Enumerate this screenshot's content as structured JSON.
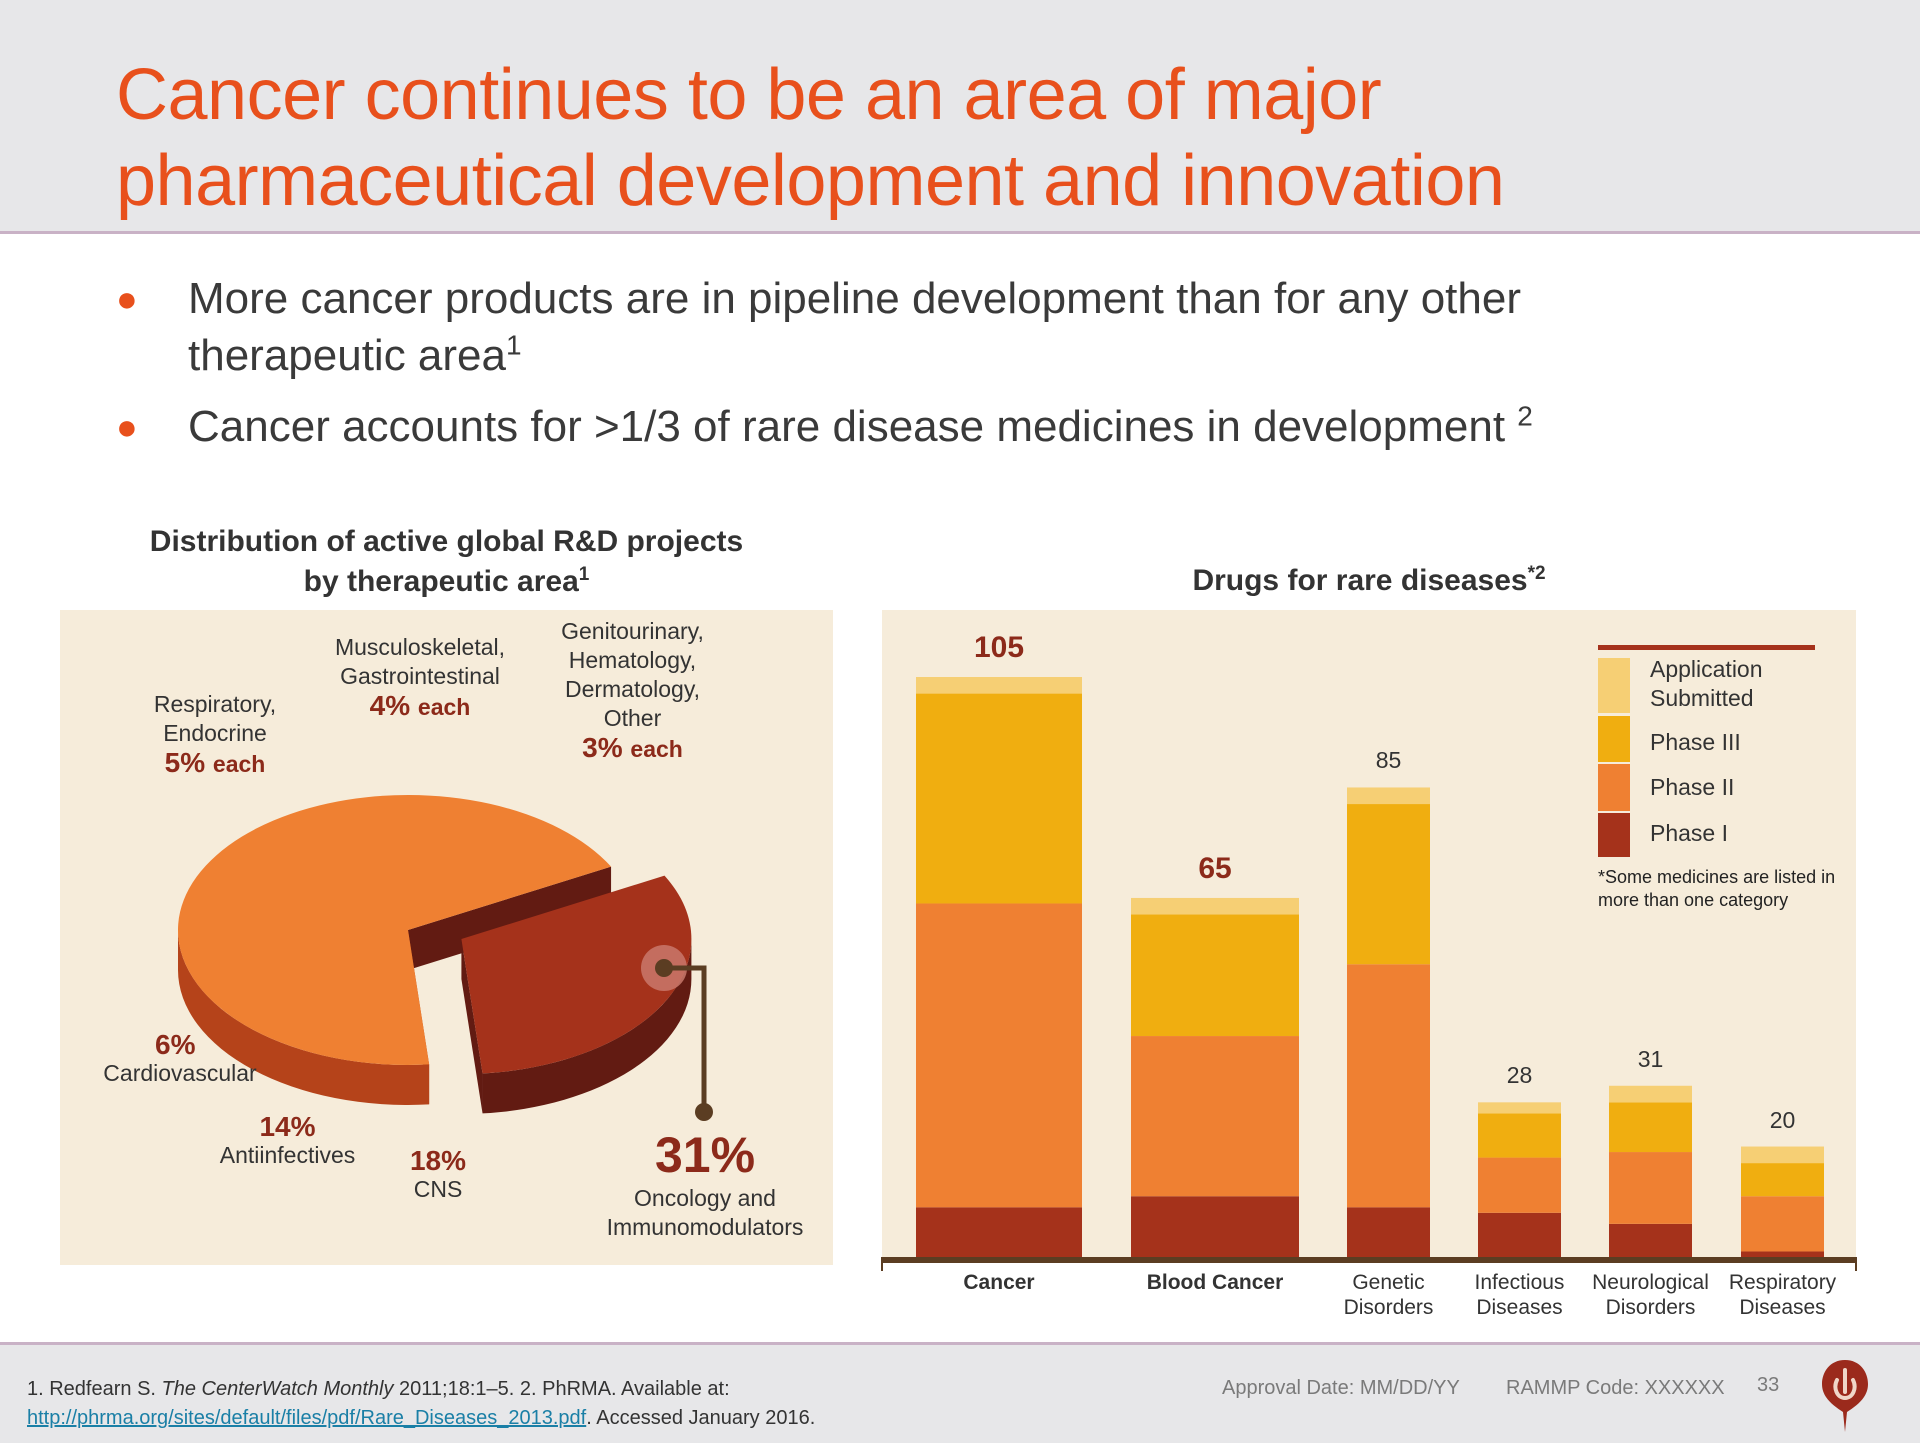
{
  "header": {
    "title_line1": "Cancer continues to be an area of major",
    "title_line2": "pharmaceutical development and innovation"
  },
  "bullets": [
    {
      "text_line1": "More cancer products are in pipeline development than for any other",
      "text_line2": "therapeutic area",
      "sup": "1"
    },
    {
      "text": "Cancer accounts for >1/3 of rare disease medicines in development ",
      "sup": "2"
    }
  ],
  "colors": {
    "title": "#e8501c",
    "app_submitted": "#f6cf74",
    "phase3": "#f0ae10",
    "phase2": "#ef8032",
    "phase1": "#a5321b",
    "value_label": "#8c2a1a",
    "pie_main": "#ef8032",
    "pie_main_side": "#b5431a",
    "pie_onc": "#a5321b",
    "pie_onc_side": "#621b12",
    "axis": "#5b3d22",
    "panel_bg": "#f6ecda"
  },
  "chart_data": [
    {
      "type": "pie",
      "title": "Distribution of active global R&D projects by therapeutic area",
      "title_line1": "Distribution of active global R&D projects",
      "title_line2": "by therapeutic area",
      "title_sup": "1",
      "slices": [
        {
          "label": "Oncology and Immunomodulators",
          "value": 31,
          "exploded": true
        },
        {
          "label": "CNS",
          "value": 18
        },
        {
          "label": "Antiinfectives",
          "value": 14
        },
        {
          "label": "Cardiovascular",
          "value": 6
        },
        {
          "label": "Respiratory",
          "value": 5
        },
        {
          "label": "Endocrine",
          "value": 5
        },
        {
          "label": "Musculoskeletal",
          "value": 4
        },
        {
          "label": "Gastrointestinal",
          "value": 4
        },
        {
          "label": "Genitourinary",
          "value": 3
        },
        {
          "label": "Hematology",
          "value": 3
        },
        {
          "label": "Dermatology",
          "value": 3
        },
        {
          "label": "Other",
          "value": 3
        }
      ],
      "annotations": {
        "resp_endo": {
          "line1": "Respiratory,",
          "line2": "Endocrine",
          "pct": "5%",
          "suffix": "each"
        },
        "musc_gastro": {
          "line1": "Musculoskeletal,",
          "line2": "Gastrointestinal",
          "pct": "4%",
          "suffix": "each"
        },
        "geni_other": {
          "line1": "Genitourinary,",
          "line2": "Hematology,",
          "line3": "Dermatology,",
          "line4": "Other",
          "pct": "3%",
          "suffix": "each"
        },
        "cardio": {
          "label": "Cardiovascular",
          "pct": "6%"
        },
        "antiinf": {
          "label": "Antiinfectives",
          "pct": "14%"
        },
        "cns": {
          "label": "CNS",
          "pct": "18%"
        },
        "onc": {
          "line1": "Oncology and",
          "line2": "Immunomodulators",
          "pct": "31%"
        }
      }
    },
    {
      "type": "bar",
      "stacked": true,
      "title": "Drugs for rare diseases",
      "title_sup": "*2",
      "categories": [
        "Cancer",
        "Blood Cancer",
        "Genetic Disorders",
        "Infectious Diseases",
        "Neurological Disorders",
        "Respiratory Diseases"
      ],
      "category_lines": [
        [
          "Cancer"
        ],
        [
          "Blood Cancer"
        ],
        [
          "Genetic",
          "Disorders"
        ],
        [
          "Infectious",
          "Diseases"
        ],
        [
          "Neurological",
          "Disorders"
        ],
        [
          "Respiratory",
          "Diseases"
        ]
      ],
      "bold_categories": [
        "Cancer",
        "Blood Cancer"
      ],
      "totals": [
        105,
        65,
        85,
        28,
        31,
        20
      ],
      "series": [
        {
          "name": "Phase I",
          "values": [
            9,
            11,
            9,
            8,
            6,
            1
          ]
        },
        {
          "name": "Phase II",
          "values": [
            55,
            29,
            44,
            10,
            13,
            10
          ]
        },
        {
          "name": "Phase III",
          "values": [
            38,
            22,
            29,
            8,
            9,
            6
          ]
        },
        {
          "name": "Application Submitted",
          "values": [
            3,
            3,
            3,
            2,
            3,
            3
          ]
        }
      ],
      "ylim": [
        0,
        105
      ],
      "grid": false,
      "legend": {
        "position": "top-right",
        "items": [
          {
            "line1": "Application",
            "line2": "Submitted"
          },
          {
            "line1": "Phase III"
          },
          {
            "line1": "Phase II"
          },
          {
            "line1": "Phase I"
          }
        ],
        "note_line1": "*Some medicines are listed in",
        "note_line2": "more than one category"
      }
    }
  ],
  "footer": {
    "ref_1_prefix": "1. Redfearn S. ",
    "ref_1_journal": "The CenterWatch Monthly",
    "ref_1_suffix": " 2011;18:1–5. 2. PhRMA. Available at:",
    "ref_2_link": "http://phrma.org/sites/default/files/pdf/Rare_Diseases_2013.pdf",
    "ref_2_suffix": ". Accessed January 2016.",
    "approval": "Approval  Date: MM/DD/YY",
    "rammp": "RAMMP Code: XXXXXX",
    "page_number": "33",
    "logo_icon": "brand-logo-drop-icon"
  }
}
